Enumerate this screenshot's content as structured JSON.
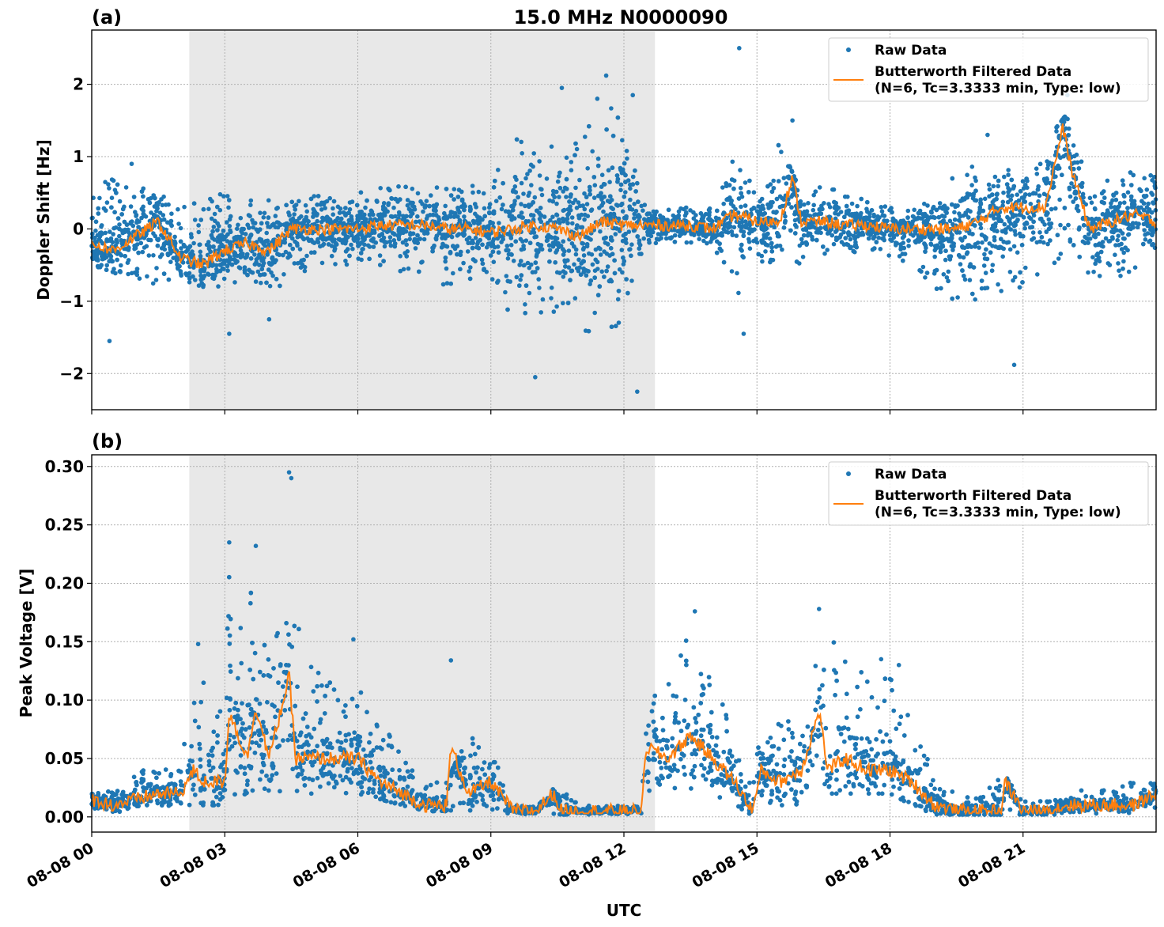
{
  "figure": {
    "title": "15.0 MHz N0000090",
    "xlabel": "UTC",
    "x_tick_labels": [
      "08-08 00",
      "08-08 03",
      "08-08 06",
      "08-08 09",
      "08-08 12",
      "08-08 15",
      "08-08 18",
      "08-08 21"
    ],
    "colors": {
      "raw": "#1f77b4",
      "filtered": "#ff7f0e",
      "night_shade": "#dcdcdc"
    }
  },
  "chart_data": [
    {
      "type": "scatter",
      "panel_label": "(a)",
      "ylabel": "Doppler Shift [Hz]",
      "x_unit": "hours UTC on 08-08",
      "xlim": [
        0,
        24
      ],
      "ylim": [
        -2.5,
        2.75
      ],
      "yticks": [
        -2,
        -1,
        0,
        1,
        2
      ],
      "ytick_labels": [
        "−2",
        "−1",
        "0",
        "1",
        "2"
      ],
      "shaded_span_hours": [
        2.2,
        12.7
      ],
      "grid": true,
      "legend_position": "top-right",
      "legend": [
        "Raw Data",
        "Butterworth Filtered Data",
        "(N=6, Tc=3.3333 min, Type: low)"
      ],
      "raw_envelope": {
        "x": [
          0,
          0.5,
          1,
          1.5,
          2,
          2.5,
          3,
          3.5,
          4,
          4.5,
          5,
          5.5,
          6,
          6.5,
          7,
          7.5,
          8,
          8.5,
          9,
          9.5,
          10,
          10.5,
          11,
          11.5,
          12,
          12.5,
          13,
          13.5,
          14,
          14.5,
          15,
          15.5,
          16,
          16.5,
          17,
          17.5,
          18,
          18.5,
          19,
          19.5,
          20,
          20.5,
          21,
          21.5,
          22,
          22.5,
          23,
          23.5,
          24
        ],
        "upper": [
          0.6,
          0.7,
          0.6,
          0.5,
          0.3,
          0.4,
          0.5,
          0.4,
          0.4,
          0.5,
          0.5,
          0.5,
          0.5,
          0.6,
          0.6,
          0.6,
          0.6,
          0.6,
          0.7,
          1.3,
          1.3,
          1.2,
          1.5,
          1.7,
          1.8,
          0.3,
          0.3,
          0.3,
          0.3,
          1.1,
          0.5,
          1.2,
          0.5,
          0.6,
          0.5,
          0.4,
          0.3,
          0.3,
          0.4,
          0.8,
          0.9,
          0.9,
          0.8,
          1.2,
          1.6,
          0.6,
          0.7,
          0.8,
          0.8
        ],
        "lower": [
          -0.5,
          -0.6,
          -0.8,
          -0.8,
          -0.7,
          -0.8,
          -0.8,
          -0.7,
          -0.9,
          -0.7,
          -0.6,
          -0.5,
          -0.5,
          -0.5,
          -0.6,
          -0.6,
          -0.8,
          -0.7,
          -0.7,
          -1.3,
          -1.3,
          -1.2,
          -1.4,
          -1.6,
          -1.6,
          -0.2,
          -0.2,
          -0.2,
          -0.3,
          -1.0,
          -0.5,
          -0.5,
          -0.5,
          -0.4,
          -0.4,
          -0.3,
          -0.4,
          -0.5,
          -0.8,
          -1.1,
          -1.2,
          -0.9,
          -0.8,
          -0.6,
          -0.3,
          -0.7,
          -0.7,
          -0.6,
          -0.4
        ]
      },
      "raw_outliers": {
        "x": [
          0.4,
          0.9,
          3.1,
          4.0,
          10.0,
          10.6,
          11.4,
          11.6,
          12.2,
          12.3,
          14.6,
          14.7,
          15.8,
          20.2,
          20.8,
          22.0
        ],
        "y": [
          -1.55,
          0.9,
          -1.45,
          -1.25,
          -2.05,
          1.95,
          1.8,
          2.12,
          1.85,
          -2.25,
          2.5,
          -1.45,
          1.5,
          1.3,
          -1.88,
          1.85
        ]
      },
      "filtered": {
        "x": [
          0,
          0.5,
          1,
          1.5,
          2,
          2.5,
          3,
          3.5,
          4,
          4.5,
          5,
          5.5,
          6,
          6.5,
          7,
          7.5,
          8,
          8.5,
          9,
          9.5,
          10,
          10.5,
          11,
          11.5,
          12,
          12.5,
          13,
          13.5,
          14,
          14.5,
          15,
          15.5,
          15.8,
          16,
          16.5,
          17,
          17.5,
          18,
          18.5,
          19,
          19.5,
          20,
          20.5,
          21,
          21.5,
          21.9,
          22.1,
          22.5,
          23,
          23.5,
          24
        ],
        "y": [
          -0.2,
          -0.3,
          -0.1,
          0.1,
          -0.4,
          -0.5,
          -0.3,
          -0.2,
          -0.3,
          0.0,
          0.0,
          0.0,
          0.0,
          0.05,
          0.05,
          0.05,
          0.0,
          0.0,
          -0.05,
          0.0,
          0.05,
          0.0,
          -0.1,
          0.1,
          0.05,
          0.05,
          0.05,
          0.05,
          0.0,
          0.2,
          0.1,
          0.1,
          0.7,
          0.1,
          0.1,
          0.05,
          0.05,
          0.0,
          0.0,
          0.0,
          0.0,
          0.1,
          0.3,
          0.3,
          0.3,
          1.4,
          0.8,
          0.0,
          0.1,
          0.2,
          0.1
        ]
      }
    },
    {
      "type": "scatter",
      "panel_label": "(b)",
      "ylabel": "Peak Voltage [V]",
      "x_unit": "hours UTC on 08-08",
      "xlim": [
        0,
        24
      ],
      "ylim": [
        -0.013,
        0.31
      ],
      "yticks": [
        0.0,
        0.05,
        0.1,
        0.15,
        0.2,
        0.25,
        0.3
      ],
      "ytick_labels": [
        "0.00",
        "0.05",
        "0.10",
        "0.15",
        "0.20",
        "0.25",
        "0.30"
      ],
      "shaded_span_hours": [
        2.2,
        12.7
      ],
      "grid": true,
      "legend_position": "top-right",
      "legend": [
        "Raw Data",
        "Butterworth Filtered Data",
        "(N=6, Tc=3.3333 min, Type: low)"
      ],
      "raw_envelope": {
        "x": [
          0,
          0.5,
          1,
          1.5,
          2,
          2.2,
          2.5,
          3,
          3.1,
          3.5,
          4,
          4.5,
          5,
          5.5,
          6,
          6.5,
          7,
          7.5,
          8,
          8.5,
          9,
          9.5,
          10,
          10.5,
          11,
          11.5,
          12,
          12.4,
          12.5,
          13,
          13.5,
          14,
          14.5,
          14.9,
          15,
          15.5,
          16,
          16.5,
          17,
          17.5,
          18,
          18.5,
          19,
          19.5,
          20,
          20.5,
          21,
          21.5,
          22,
          22.5,
          23,
          23.5,
          24
        ],
        "upper": [
          0.03,
          0.02,
          0.04,
          0.04,
          0.05,
          0.08,
          0.13,
          0.08,
          0.22,
          0.2,
          0.16,
          0.2,
          0.13,
          0.12,
          0.11,
          0.09,
          0.05,
          0.03,
          0.03,
          0.07,
          0.06,
          0.01,
          0.01,
          0.03,
          0.01,
          0.01,
          0.01,
          0.01,
          0.13,
          0.12,
          0.16,
          0.12,
          0.08,
          0.02,
          0.09,
          0.08,
          0.09,
          0.16,
          0.14,
          0.12,
          0.12,
          0.1,
          0.03,
          0.02,
          0.02,
          0.04,
          0.015,
          0.015,
          0.02,
          0.025,
          0.025,
          0.03,
          0.03
        ],
        "lower": [
          0.005,
          0.003,
          0.005,
          0.008,
          0.008,
          0.01,
          0.01,
          0.01,
          0.015,
          0.02,
          0.02,
          0.02,
          0.02,
          0.02,
          0.02,
          0.015,
          0.01,
          0.005,
          0.005,
          0.005,
          0.005,
          0.002,
          0.002,
          0.002,
          0.002,
          0.002,
          0.002,
          0.002,
          0.02,
          0.02,
          0.02,
          0.02,
          0.01,
          0.0,
          0.01,
          0.01,
          0.01,
          0.02,
          0.02,
          0.02,
          0.02,
          0.01,
          0.002,
          0.002,
          0.002,
          0.002,
          0.002,
          0.002,
          0.002,
          0.003,
          0.003,
          0.003,
          0.005
        ]
      },
      "raw_outliers": {
        "x": [
          2.4,
          3.1,
          3.7,
          4.45,
          4.5,
          5.9,
          8.1,
          13.6,
          16.4,
          17.8,
          18.0,
          18.2
        ],
        "y": [
          0.148,
          0.235,
          0.232,
          0.295,
          0.29,
          0.152,
          0.134,
          0.176,
          0.178,
          0.135,
          0.118,
          0.13
        ]
      },
      "filtered": {
        "x": [
          0,
          0.5,
          1,
          1.5,
          2,
          2.3,
          2.5,
          3,
          3.1,
          3.5,
          3.7,
          4,
          4.45,
          4.6,
          5,
          5.5,
          6,
          6.5,
          7,
          7.5,
          8,
          8.1,
          8.5,
          9,
          9.5,
          10,
          10.4,
          10.6,
          11,
          11.5,
          12,
          12.4,
          12.5,
          13,
          13.5,
          14,
          14.5,
          14.9,
          15.1,
          15.5,
          16,
          16.4,
          16.6,
          17,
          17.5,
          18,
          18.5,
          19,
          19.5,
          20,
          20.5,
          20.6,
          21,
          21.5,
          22,
          22.5,
          23,
          23.5,
          24
        ],
        "y": [
          0.015,
          0.01,
          0.015,
          0.02,
          0.02,
          0.04,
          0.03,
          0.03,
          0.09,
          0.05,
          0.095,
          0.05,
          0.12,
          0.05,
          0.05,
          0.05,
          0.05,
          0.03,
          0.02,
          0.01,
          0.01,
          0.06,
          0.02,
          0.03,
          0.005,
          0.005,
          0.02,
          0.005,
          0.005,
          0.005,
          0.005,
          0.005,
          0.06,
          0.05,
          0.07,
          0.05,
          0.03,
          0.005,
          0.04,
          0.03,
          0.04,
          0.09,
          0.04,
          0.05,
          0.04,
          0.04,
          0.03,
          0.01,
          0.005,
          0.005,
          0.005,
          0.03,
          0.005,
          0.005,
          0.01,
          0.01,
          0.01,
          0.01,
          0.02
        ]
      }
    }
  ]
}
